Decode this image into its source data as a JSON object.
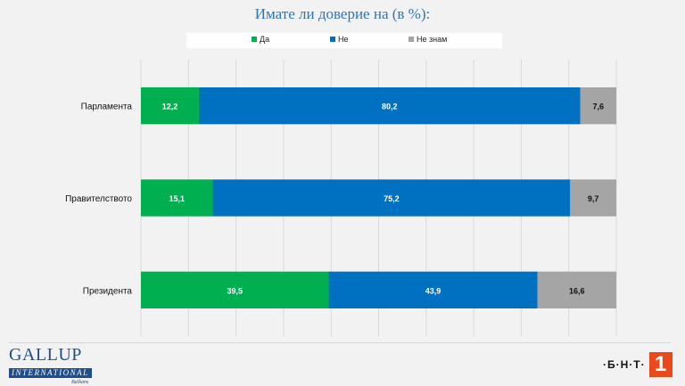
{
  "title": "Имате ли доверие на (в %):",
  "chart_data": {
    "type": "bar",
    "orientation": "horizontal",
    "stacked": true,
    "title": "Имате ли доверие на (в %):",
    "categories": [
      "Парламента",
      "Правителството",
      "Президента"
    ],
    "series": [
      {
        "name": "Да",
        "color": "#00b050",
        "values": [
          12.2,
          15.1,
          39.5
        ],
        "labels": [
          "12,2",
          "15,1",
          "39,5"
        ]
      },
      {
        "name": "Не",
        "color": "#0070c0",
        "values": [
          80.2,
          75.2,
          43.9
        ],
        "labels": [
          "80,2",
          "75,2",
          "43,9"
        ]
      },
      {
        "name": "Не знам",
        "color": "#a5a5a5",
        "values": [
          7.6,
          9.7,
          16.6
        ],
        "labels": [
          "7,6",
          "9,7",
          "16,6"
        ]
      }
    ],
    "xlim": [
      0,
      100
    ],
    "grid": true,
    "legend_position": "top"
  },
  "logos": {
    "gallup_main": "GALLUP",
    "gallup_sub": "INTERNATIONAL",
    "gallup_region": "Balkans",
    "bnt_text": "·Б·Н·Т·",
    "bnt_number": "1"
  }
}
